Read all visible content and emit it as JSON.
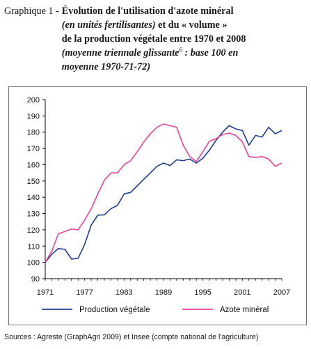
{
  "header": {
    "prefix": "Graphique 1 -",
    "line1": "Évolution de l'utilisation d'azote minéral",
    "line2_italic": "(en unités fertilisantes)",
    "line2_rest": " et du « volume »",
    "line3": "de la production végétale entre 1970 et 2008",
    "line4_italic": "(moyenne triennale glissante",
    "line4_sup": "6",
    "line4_rest": " : base 100 en",
    "line5": "moyenne 1970-71-72)"
  },
  "source": "Sources : Agreste (GraphAgri 2009) et Insee (compte national de l'agriculture)",
  "colors": {
    "production": "#1f3b8c",
    "azote": "#e8439a",
    "axis": "#000000",
    "frame": "#6f6f6f"
  },
  "chart_data": {
    "type": "line",
    "title": "Évolution de l'utilisation d'azote minéral (en unités fertilisantes) et du « volume » de la production végétale entre 1970 et 2008",
    "xlabel": "",
    "ylabel": "",
    "x": [
      1971,
      1972,
      1973,
      1974,
      1975,
      1976,
      1977,
      1978,
      1979,
      1980,
      1981,
      1982,
      1983,
      1984,
      1985,
      1986,
      1987,
      1988,
      1989,
      1990,
      1991,
      1992,
      1993,
      1994,
      1995,
      1996,
      1997,
      1998,
      1999,
      2000,
      2001,
      2002,
      2003,
      2004,
      2005,
      2006,
      2007
    ],
    "xticks": [
      1971,
      1977,
      1983,
      1989,
      1995,
      2001,
      2007
    ],
    "ylim": [
      90,
      200
    ],
    "yticks": [
      90,
      100,
      110,
      120,
      130,
      140,
      150,
      160,
      170,
      180,
      190,
      200
    ],
    "grid": false,
    "legend": "bottom",
    "series": [
      {
        "name": "Production végétale",
        "color": "#1f3b8c",
        "values": [
          100,
          105,
          108.5,
          108,
          102,
          102.5,
          111,
          123,
          129,
          129.2,
          133,
          135,
          142,
          143,
          147,
          151,
          155,
          159,
          161,
          159.5,
          163,
          162.5,
          163.5,
          161,
          164,
          169,
          175,
          180,
          184,
          182,
          181,
          172,
          178,
          177,
          183,
          179,
          181
        ]
      },
      {
        "name": "Azote minéral",
        "color": "#e8439a",
        "values": [
          100,
          107,
          117.5,
          119,
          120.5,
          120,
          126,
          133,
          142,
          150.5,
          155,
          155,
          160,
          162.5,
          168,
          174,
          179,
          183,
          185,
          184,
          183,
          172,
          165,
          162,
          168,
          174.5,
          176,
          178.5,
          179.5,
          178,
          174,
          165,
          164.5,
          165,
          163.5,
          159,
          161
        ]
      }
    ]
  }
}
